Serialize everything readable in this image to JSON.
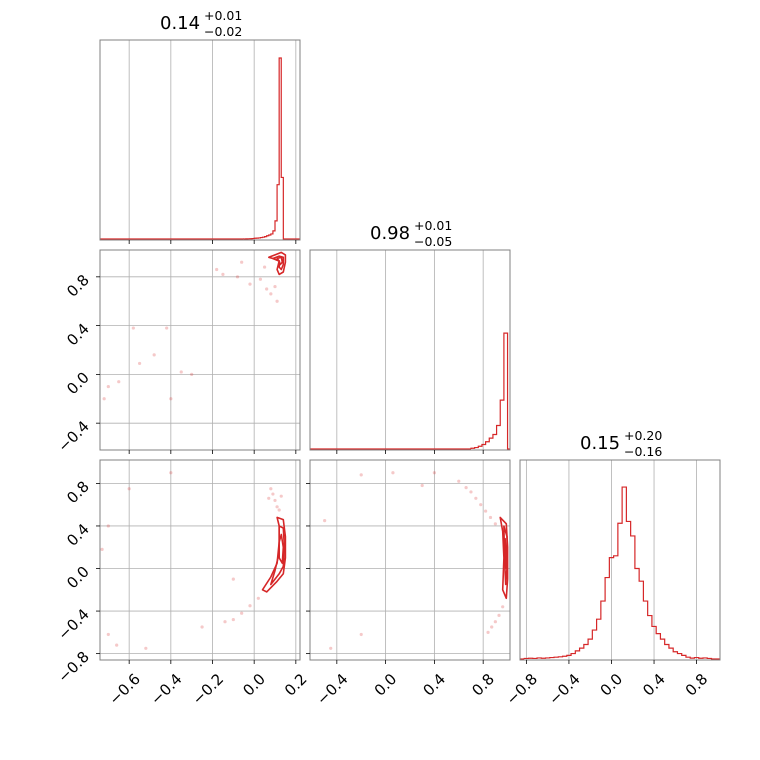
{
  "colors": {
    "series": "#d62728",
    "grid": "#b0b0b0",
    "frame": "#808080"
  },
  "chart_data": {
    "type": "corner",
    "grid": true,
    "params": [
      {
        "title": {
          "value": "0.14",
          "plus": "+0.01",
          "minus": "−0.02"
        },
        "xlim": [
          -0.74,
          0.22
        ],
        "ticks": [
          -0.6,
          -0.4,
          -0.2,
          0.0,
          0.2
        ],
        "tick_labels": [
          "−0.6",
          "−0.4",
          "−0.2",
          "0.0",
          "0.2"
        ],
        "hist": [
          [
            -0.05,
            0.0002
          ],
          [
            -0.04,
            0.0005
          ],
          [
            -0.03,
            0.001
          ],
          [
            -0.02,
            0.0015
          ],
          [
            -0.01,
            0.0025
          ],
          [
            0.0,
            0.004
          ],
          [
            0.01,
            0.005
          ],
          [
            0.02,
            0.006
          ],
          [
            0.03,
            0.008
          ],
          [
            0.04,
            0.01
          ],
          [
            0.05,
            0.013
          ],
          [
            0.06,
            0.018
          ],
          [
            0.07,
            0.022
          ],
          [
            0.08,
            0.028
          ],
          [
            0.09,
            0.045
          ],
          [
            0.1,
            0.1
          ],
          [
            0.11,
            0.3
          ],
          [
            0.12,
            1.0
          ],
          [
            0.13,
            0.34
          ],
          [
            0.14,
            0.0
          ]
        ]
      },
      {
        "title": {
          "value": "0.98",
          "plus": "+0.01",
          "minus": "−0.05"
        },
        "xlim": [
          -0.62,
          1.02
        ],
        "ticks": [
          -0.4,
          0.0,
          0.4,
          0.8
        ],
        "tick_labels": [
          "−0.4",
          "0.0",
          "0.4",
          "0.8"
        ],
        "hist": [
          [
            0.7,
            0.004
          ],
          [
            0.73,
            0.008
          ],
          [
            0.76,
            0.015
          ],
          [
            0.79,
            0.025
          ],
          [
            0.82,
            0.04
          ],
          [
            0.85,
            0.06
          ],
          [
            0.88,
            0.08
          ],
          [
            0.91,
            0.13
          ],
          [
            0.94,
            0.27
          ],
          [
            0.97,
            0.64
          ],
          [
            1.0,
            0.0
          ]
        ]
      },
      {
        "title": {
          "value": "0.15",
          "plus": "+0.20",
          "minus": "−0.16"
        },
        "xlim": [
          -0.86,
          1.02
        ],
        "ticks": [
          -0.8,
          -0.4,
          0.0,
          0.4,
          0.8
        ],
        "tick_labels": [
          "−0.8",
          "−0.4",
          "0.0",
          "0.4",
          "0.8"
        ],
        "hist": [
          [
            -0.82,
            0.003
          ],
          [
            -0.78,
            0.004
          ],
          [
            -0.74,
            0.003
          ],
          [
            -0.7,
            0.006
          ],
          [
            -0.66,
            0.004
          ],
          [
            -0.62,
            0.006
          ],
          [
            -0.58,
            0.008
          ],
          [
            -0.54,
            0.01
          ],
          [
            -0.5,
            0.012
          ],
          [
            -0.46,
            0.015
          ],
          [
            -0.42,
            0.02
          ],
          [
            -0.38,
            0.03
          ],
          [
            -0.34,
            0.045
          ],
          [
            -0.3,
            0.06
          ],
          [
            -0.26,
            0.08
          ],
          [
            -0.22,
            0.11
          ],
          [
            -0.18,
            0.16
          ],
          [
            -0.14,
            0.22
          ],
          [
            -0.1,
            0.32
          ],
          [
            -0.06,
            0.45
          ],
          [
            -0.02,
            0.56
          ],
          [
            0.02,
            0.57
          ],
          [
            0.06,
            0.75
          ],
          [
            0.1,
            0.95
          ],
          [
            0.14,
            0.76
          ],
          [
            0.18,
            0.68
          ],
          [
            0.22,
            0.5
          ],
          [
            0.26,
            0.43
          ],
          [
            0.3,
            0.32
          ],
          [
            0.34,
            0.24
          ],
          [
            0.38,
            0.18
          ],
          [
            0.42,
            0.14
          ],
          [
            0.46,
            0.11
          ],
          [
            0.5,
            0.08
          ],
          [
            0.54,
            0.06
          ],
          [
            0.58,
            0.04
          ],
          [
            0.62,
            0.03
          ],
          [
            0.66,
            0.02
          ],
          [
            0.7,
            0.01
          ],
          [
            0.74,
            0.005
          ],
          [
            0.78,
            0.008
          ],
          [
            0.82,
            0.004
          ],
          [
            0.86,
            0.006
          ],
          [
            0.9,
            0.003
          ],
          [
            0.94,
            0.0
          ]
        ]
      }
    ],
    "yranges": {
      "p1": [
        -0.62,
        1.02
      ],
      "p2": [
        -0.86,
        1.02
      ]
    },
    "contours": [
      {
        "panel": "p0_p1",
        "levels": [
          [
            [
              0.07,
              0.96
            ],
            [
              0.1,
              0.98
            ],
            [
              0.13,
              1.0
            ],
            [
              0.15,
              0.98
            ],
            [
              0.15,
              0.92
            ],
            [
              0.14,
              0.84
            ],
            [
              0.12,
              0.82
            ],
            [
              0.11,
              0.86
            ],
            [
              0.12,
              0.93
            ],
            [
              0.09,
              0.95
            ]
          ],
          [
            [
              0.09,
              0.95
            ],
            [
              0.12,
              0.97
            ],
            [
              0.14,
              0.96
            ],
            [
              0.14,
              0.9
            ],
            [
              0.13,
              0.86
            ],
            [
              0.12,
              0.88
            ],
            [
              0.12,
              0.93
            ]
          ],
          [
            [
              0.11,
              0.95
            ],
            [
              0.13,
              0.96
            ],
            [
              0.135,
              0.92
            ],
            [
              0.125,
              0.9
            ],
            [
              0.12,
              0.93
            ]
          ]
        ],
        "points": [
          [
            -0.18,
            0.86
          ],
          [
            -0.08,
            0.8
          ],
          [
            -0.02,
            0.74
          ],
          [
            0.03,
            0.78
          ],
          [
            0.06,
            0.7
          ],
          [
            0.08,
            0.66
          ],
          [
            0.1,
            0.72
          ],
          [
            0.11,
            0.6
          ],
          [
            -0.06,
            0.92
          ],
          [
            0.05,
            0.88
          ],
          [
            -0.15,
            0.82
          ],
          [
            -0.58,
            0.38
          ],
          [
            -0.42,
            0.38
          ],
          [
            -0.48,
            0.16
          ],
          [
            -0.55,
            0.09
          ],
          [
            -0.65,
            -0.06
          ],
          [
            -0.7,
            -0.1
          ],
          [
            -0.72,
            -0.2
          ],
          [
            -0.4,
            -0.2
          ],
          [
            -0.35,
            0.02
          ],
          [
            -0.3,
            0.0
          ]
        ]
      },
      {
        "panel": "p0_p2",
        "levels": [
          [
            [
              0.11,
              0.48
            ],
            [
              0.14,
              0.46
            ],
            [
              0.15,
              0.3
            ],
            [
              0.15,
              0.1
            ],
            [
              0.14,
              -0.05
            ],
            [
              0.11,
              -0.12
            ],
            [
              0.06,
              -0.22
            ],
            [
              0.04,
              -0.2
            ],
            [
              0.08,
              -0.08
            ],
            [
              0.11,
              0.05
            ],
            [
              0.12,
              0.25
            ],
            [
              0.12,
              0.4
            ]
          ],
          [
            [
              0.12,
              0.4
            ],
            [
              0.14,
              0.38
            ],
            [
              0.145,
              0.2
            ],
            [
              0.14,
              0.02
            ],
            [
              0.12,
              -0.05
            ],
            [
              0.08,
              -0.15
            ],
            [
              0.1,
              -0.02
            ],
            [
              0.12,
              0.15
            ]
          ],
          [
            [
              0.13,
              0.32
            ],
            [
              0.14,
              0.2
            ],
            [
              0.135,
              0.05
            ],
            [
              0.12,
              0.1
            ],
            [
              0.12,
              0.25
            ]
          ]
        ],
        "points": [
          [
            0.08,
            0.75
          ],
          [
            0.09,
            0.7
          ],
          [
            0.1,
            0.64
          ],
          [
            0.11,
            0.58
          ],
          [
            0.12,
            0.55
          ],
          [
            0.07,
            0.66
          ],
          [
            0.13,
            0.68
          ],
          [
            0.02,
            -0.28
          ],
          [
            -0.02,
            -0.35
          ],
          [
            -0.06,
            -0.42
          ],
          [
            -0.1,
            -0.48
          ],
          [
            -0.14,
            -0.5
          ],
          [
            -0.25,
            -0.55
          ],
          [
            -0.4,
            0.9
          ],
          [
            -0.6,
            0.75
          ],
          [
            -0.7,
            -0.62
          ],
          [
            -0.66,
            -0.72
          ],
          [
            -0.52,
            -0.75
          ],
          [
            -0.1,
            -0.1
          ],
          [
            -0.7,
            0.4
          ],
          [
            -0.73,
            0.18
          ]
        ]
      },
      {
        "panel": "p1_p2",
        "levels": [
          [
            [
              0.94,
              0.48
            ],
            [
              0.99,
              0.42
            ],
            [
              1.0,
              0.2
            ],
            [
              1.0,
              -0.1
            ],
            [
              0.99,
              -0.28
            ],
            [
              0.96,
              -0.2
            ],
            [
              0.97,
              0.1
            ],
            [
              0.96,
              0.35
            ]
          ],
          [
            [
              0.97,
              0.4
            ],
            [
              0.995,
              0.3
            ],
            [
              0.995,
              0.0
            ],
            [
              0.985,
              -0.15
            ],
            [
              0.975,
              0.1
            ]
          ],
          [
            [
              0.98,
              0.28
            ],
            [
              0.99,
              0.15
            ],
            [
              0.99,
              0.0
            ],
            [
              0.982,
              0.1
            ]
          ]
        ],
        "points": [
          [
            0.66,
            0.76
          ],
          [
            0.7,
            0.72
          ],
          [
            0.74,
            0.66
          ],
          [
            0.78,
            0.6
          ],
          [
            0.82,
            0.54
          ],
          [
            0.86,
            0.48
          ],
          [
            0.9,
            0.42
          ],
          [
            0.96,
            -0.36
          ],
          [
            0.93,
            -0.44
          ],
          [
            0.9,
            -0.5
          ],
          [
            0.87,
            -0.55
          ],
          [
            0.84,
            -0.6
          ],
          [
            0.4,
            0.9
          ],
          [
            0.06,
            0.9
          ],
          [
            -0.2,
            0.88
          ],
          [
            -0.5,
            0.45
          ],
          [
            -0.2,
            -0.62
          ],
          [
            -0.45,
            -0.75
          ],
          [
            0.3,
            0.78
          ],
          [
            0.6,
            0.82
          ]
        ]
      }
    ]
  }
}
